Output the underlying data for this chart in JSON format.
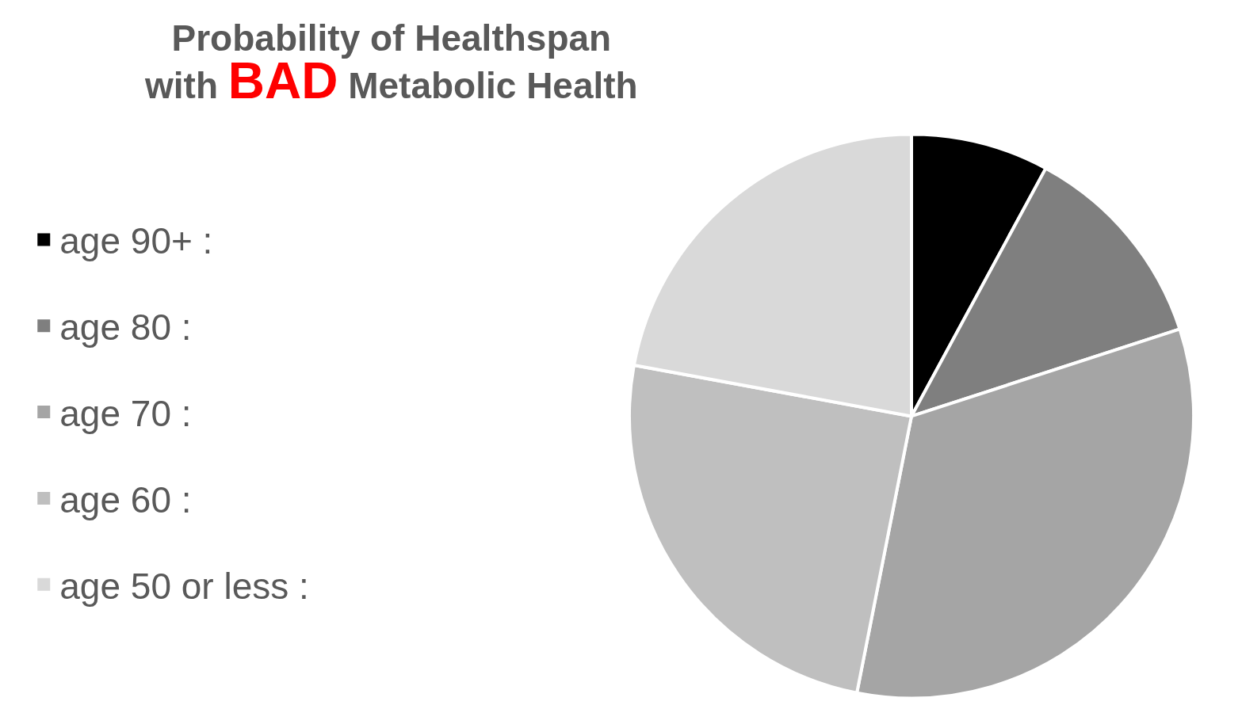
{
  "chart_data": {
    "type": "pie",
    "title": "Probability of Healthspan with BAD Metabolic Health",
    "categories": [
      "age 90+",
      "age 80",
      "age 70",
      "age 60",
      "age 50 or less"
    ],
    "values": [
      7.9,
      12.1,
      33.1,
      24.8,
      22.1
    ],
    "colors": [
      "#000000",
      "#7f7f7f",
      "#a5a5a5",
      "#bfbfbf",
      "#d9d9d9"
    ],
    "annotations": [
      ":",
      ":",
      ":",
      ":",
      ":"
    ],
    "legend": "left"
  }
}
